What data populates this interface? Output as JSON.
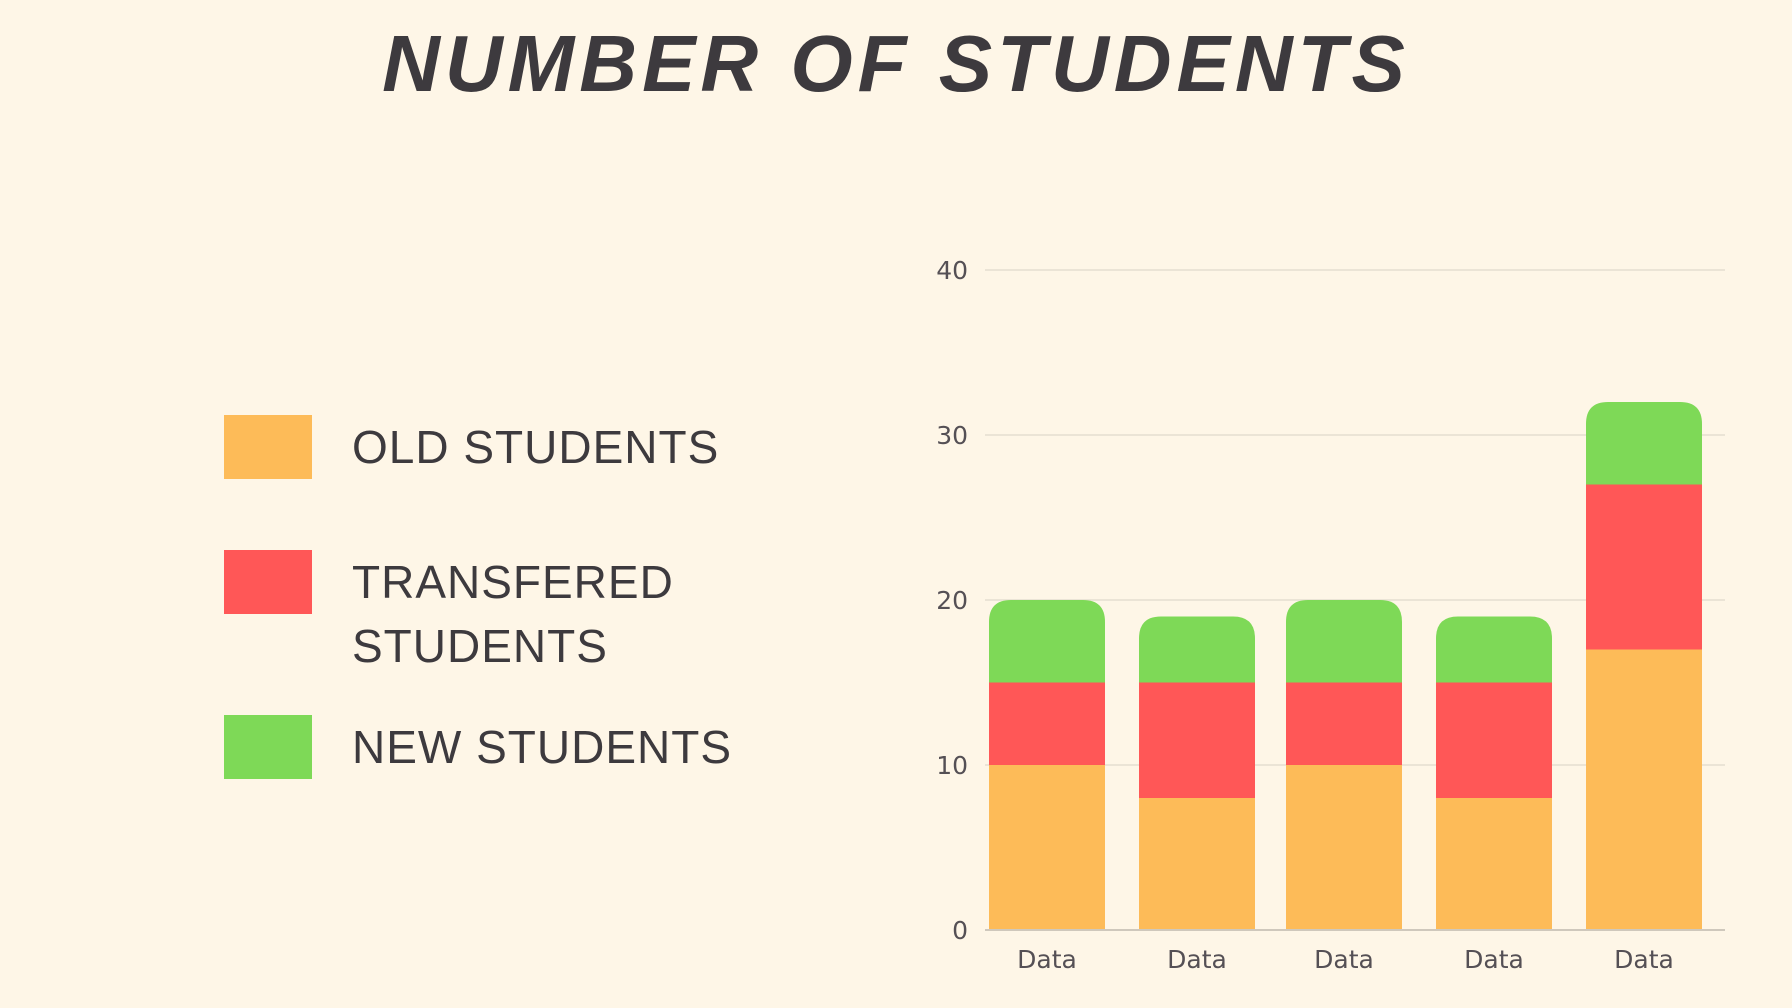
{
  "chart_data": {
    "type": "bar",
    "stacked": true,
    "title": "NUMBER OF STUDENTS",
    "categories": [
      "Data",
      "Data",
      "Data",
      "Data",
      "Data"
    ],
    "series": [
      {
        "name": "OLD STUDENTS",
        "color": "#fdbb58",
        "values": [
          10,
          8,
          10,
          8,
          17
        ]
      },
      {
        "name": "TRANSFERED STUDENTS",
        "color": "#ff5757",
        "values": [
          5,
          7,
          5,
          7,
          10
        ]
      },
      {
        "name": "NEW STUDENTS",
        "color": "#7ed957",
        "values": [
          5,
          4,
          5,
          4,
          5
        ]
      }
    ],
    "yticks": [
      "0",
      "10",
      "20",
      "30",
      "40"
    ],
    "ylim": [
      0,
      40
    ],
    "grid": true,
    "legend_position": "left"
  }
}
